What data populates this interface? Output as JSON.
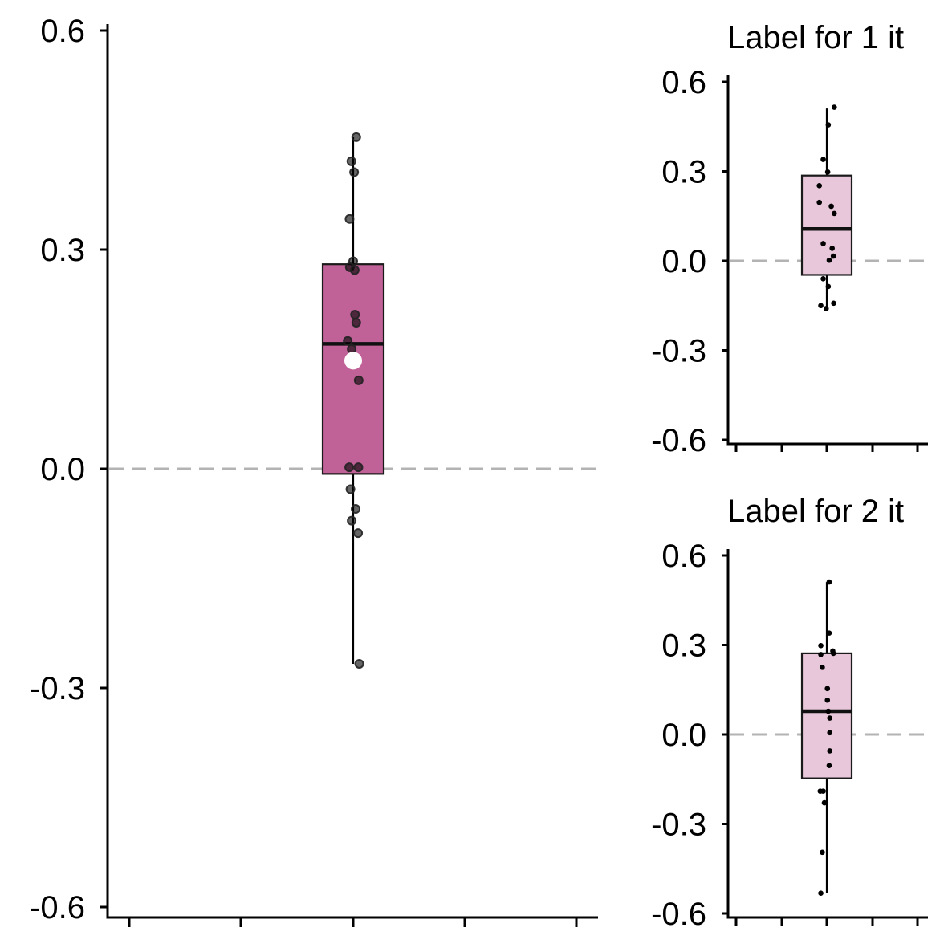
{
  "colors": {
    "main_box": "#c06297",
    "small_box": "#e8c7da",
    "axis": "#000000",
    "refline": "#b3b3b3",
    "point": "#000000",
    "mean_point": "#ffffff"
  },
  "chart_data": [
    {
      "type": "box",
      "title": "",
      "xlabel": "",
      "ylabel": "",
      "ylim": [
        -0.6,
        0.6
      ],
      "yticks": [
        -0.6,
        -0.3,
        0.0,
        0.3,
        0.6
      ],
      "ytick_labels": [
        "-0.6",
        "-0.3",
        "0.0",
        "0.3",
        "0.6"
      ],
      "xtick_count": 5,
      "reference_line": 0.0,
      "box": {
        "q1": -0.007,
        "median": 0.171,
        "q3": 0.28,
        "whisker_low": -0.267,
        "whisker_high": 0.454
      },
      "mean": 0.148,
      "points": [
        {
          "x": 0.1,
          "y": 0.454
        },
        {
          "x": -0.06,
          "y": 0.421
        },
        {
          "x": 0.03,
          "y": 0.406
        },
        {
          "x": -0.12,
          "y": 0.342
        },
        {
          "x": 0.0,
          "y": 0.284
        },
        {
          "x": -0.11,
          "y": 0.276
        },
        {
          "x": 0.05,
          "y": 0.272
        },
        {
          "x": 0.06,
          "y": 0.211
        },
        {
          "x": 0.1,
          "y": 0.2
        },
        {
          "x": -0.18,
          "y": 0.175
        },
        {
          "x": -0.05,
          "y": 0.164
        },
        {
          "x": 0.08,
          "y": 0.144
        },
        {
          "x": 0.18,
          "y": 0.121
        },
        {
          "x": -0.13,
          "y": 0.002
        },
        {
          "x": 0.17,
          "y": 0.002
        },
        {
          "x": -0.09,
          "y": -0.028
        },
        {
          "x": 0.08,
          "y": -0.055
        },
        {
          "x": -0.05,
          "y": -0.071
        },
        {
          "x": 0.16,
          "y": -0.088
        },
        {
          "x": 0.2,
          "y": -0.267
        }
      ]
    },
    {
      "type": "box",
      "title": "Label for 1 it",
      "xlabel": "",
      "ylabel": "",
      "ylim": [
        -0.6,
        0.6
      ],
      "yticks": [
        -0.6,
        -0.3,
        0.0,
        0.3,
        0.6
      ],
      "ytick_labels": [
        "-0.6",
        "-0.3",
        "0.0",
        "0.3",
        "0.6"
      ],
      "xtick_count": 5,
      "reference_line": 0.0,
      "box": {
        "q1": -0.047,
        "median": 0.107,
        "q3": 0.286,
        "whisker_low": -0.16,
        "whisker_high": 0.511
      },
      "points": [
        {
          "x": 0.25,
          "y": 0.515
        },
        {
          "x": 0.05,
          "y": 0.456
        },
        {
          "x": -0.12,
          "y": 0.34
        },
        {
          "x": 0.03,
          "y": 0.298
        },
        {
          "x": -0.25,
          "y": 0.252
        },
        {
          "x": -0.25,
          "y": 0.196
        },
        {
          "x": 0.15,
          "y": 0.183
        },
        {
          "x": 0.25,
          "y": 0.159
        },
        {
          "x": -0.12,
          "y": 0.058
        },
        {
          "x": 0.18,
          "y": 0.042
        },
        {
          "x": 0.22,
          "y": 0.016
        },
        {
          "x": 0.08,
          "y": 0.002
        },
        {
          "x": -0.12,
          "y": -0.06
        },
        {
          "x": 0.05,
          "y": -0.086
        },
        {
          "x": 0.23,
          "y": -0.142
        },
        {
          "x": -0.2,
          "y": -0.15
        },
        {
          "x": -0.02,
          "y": -0.16
        }
      ]
    },
    {
      "type": "box",
      "title": "Label for 2 it",
      "xlabel": "",
      "ylabel": "",
      "ylim": [
        -0.6,
        0.6
      ],
      "yticks": [
        -0.6,
        -0.3,
        0.0,
        0.3,
        0.6
      ],
      "ytick_labels": [
        "-0.6",
        "-0.3",
        "0.0",
        "0.3",
        "0.6"
      ],
      "xtick_count": 5,
      "reference_line": 0.0,
      "box": {
        "q1": -0.147,
        "median": 0.078,
        "q3": 0.272,
        "whisker_low": -0.532,
        "whisker_high": 0.511
      },
      "points": [
        {
          "x": 0.08,
          "y": 0.511
        },
        {
          "x": 0.08,
          "y": 0.34
        },
        {
          "x": -0.2,
          "y": 0.298
        },
        {
          "x": 0.2,
          "y": 0.28
        },
        {
          "x": 0.22,
          "y": 0.272
        },
        {
          "x": -0.2,
          "y": 0.268
        },
        {
          "x": -0.15,
          "y": 0.225
        },
        {
          "x": 0.02,
          "y": 0.154
        },
        {
          "x": 0.02,
          "y": 0.115
        },
        {
          "x": 0.05,
          "y": 0.078
        },
        {
          "x": 0.1,
          "y": 0.055
        },
        {
          "x": 0.1,
          "y": 0.006
        },
        {
          "x": 0.1,
          "y": -0.055
        },
        {
          "x": 0.08,
          "y": -0.104
        },
        {
          "x": -0.22,
          "y": -0.19
        },
        {
          "x": -0.12,
          "y": -0.19
        },
        {
          "x": -0.08,
          "y": -0.229
        },
        {
          "x": -0.15,
          "y": -0.395
        },
        {
          "x": -0.2,
          "y": -0.532
        }
      ]
    }
  ]
}
